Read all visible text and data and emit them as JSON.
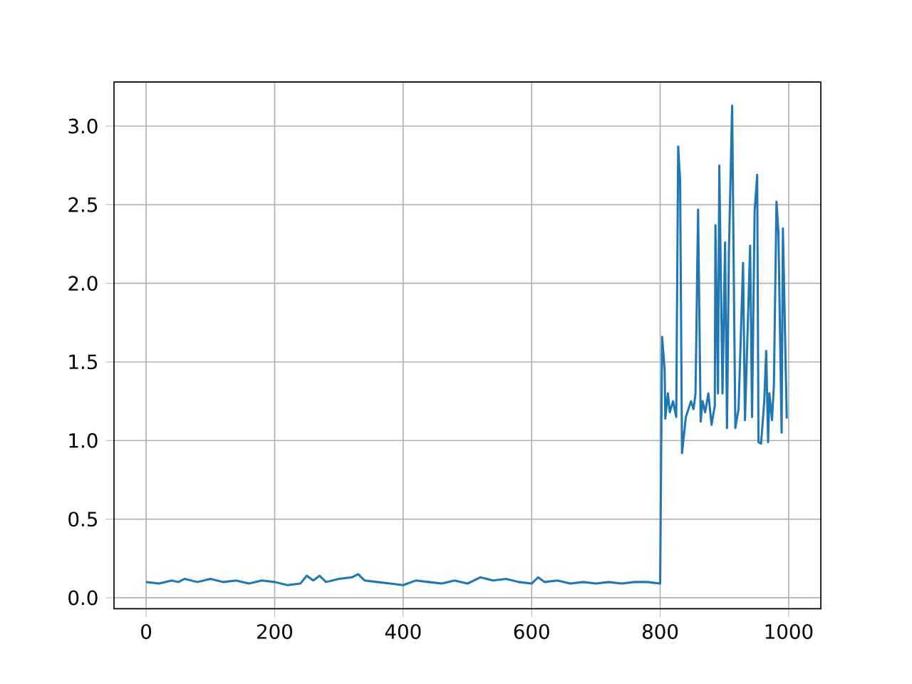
{
  "chart_data": {
    "type": "line",
    "color": "#1f77b4",
    "grid": true,
    "x": [
      0,
      20,
      40,
      50,
      60,
      80,
      100,
      120,
      140,
      160,
      180,
      200,
      220,
      240,
      250,
      260,
      270,
      280,
      300,
      320,
      330,
      340,
      360,
      380,
      400,
      420,
      440,
      460,
      480,
      500,
      520,
      540,
      560,
      580,
      600,
      610,
      620,
      640,
      660,
      680,
      700,
      720,
      740,
      760,
      780,
      800,
      803,
      807,
      808,
      812,
      815,
      820,
      825,
      828,
      831,
      834,
      840,
      848,
      852,
      855,
      859,
      863,
      866,
      870,
      875,
      880,
      885,
      886,
      890,
      892,
      897,
      901,
      904,
      907,
      912,
      915,
      917,
      922,
      929,
      932,
      940,
      943,
      947,
      951,
      953,
      957,
      962,
      965,
      968,
      970,
      974,
      977,
      981,
      984,
      989,
      991,
      997
    ],
    "values": [
      0.1,
      0.09,
      0.11,
      0.1,
      0.12,
      0.1,
      0.12,
      0.1,
      0.11,
      0.09,
      0.11,
      0.1,
      0.08,
      0.09,
      0.14,
      0.11,
      0.14,
      0.1,
      0.12,
      0.13,
      0.15,
      0.11,
      0.1,
      0.09,
      0.08,
      0.11,
      0.1,
      0.09,
      0.11,
      0.09,
      0.13,
      0.11,
      0.12,
      0.1,
      0.09,
      0.13,
      0.1,
      0.11,
      0.09,
      0.1,
      0.09,
      0.1,
      0.09,
      0.1,
      0.1,
      0.09,
      1.66,
      1.45,
      1.14,
      1.3,
      1.18,
      1.25,
      1.15,
      2.87,
      2.66,
      0.92,
      1.15,
      1.25,
      1.2,
      1.3,
      2.47,
      1.12,
      1.25,
      1.18,
      1.3,
      1.1,
      1.22,
      2.37,
      1.3,
      2.75,
      1.3,
      2.26,
      1.08,
      2.2,
      3.13,
      1.87,
      1.08,
      1.2,
      2.13,
      1.13,
      2.24,
      1.15,
      2.46,
      2.69,
      0.99,
      0.98,
      1.25,
      1.57,
      0.99,
      1.3,
      1.13,
      1.35,
      2.52,
      2.33,
      1.05,
      2.35,
      1.14
    ],
    "xlim": [
      -50,
      1050
    ],
    "ylim": [
      -0.07,
      3.28
    ],
    "xticks": [
      0,
      200,
      400,
      600,
      800,
      1000
    ],
    "yticks": [
      {
        "value": 0,
        "label": "0.0"
      },
      {
        "value": 0.5,
        "label": "0.5"
      },
      {
        "value": 1,
        "label": "1.0"
      },
      {
        "value": 1.5,
        "label": "1.5"
      },
      {
        "value": 2,
        "label": "2.0"
      },
      {
        "value": 2.5,
        "label": "2.5"
      },
      {
        "value": 3,
        "label": "3.0"
      }
    ]
  }
}
